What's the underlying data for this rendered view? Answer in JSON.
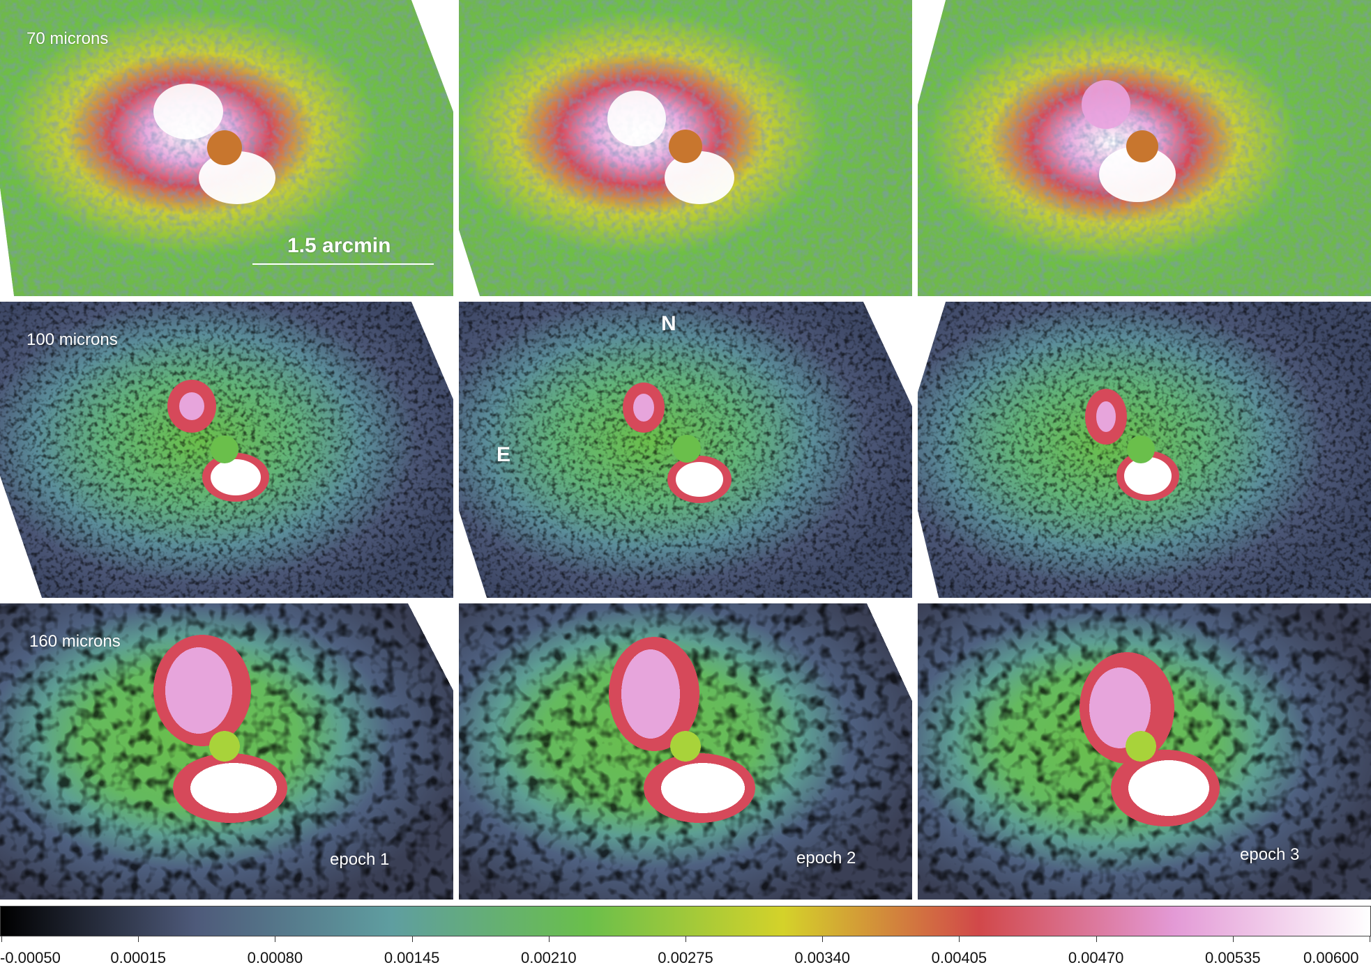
{
  "rows": [
    {
      "band_label": "70 microns"
    },
    {
      "band_label": "100 microns"
    },
    {
      "band_label": "160 microns"
    }
  ],
  "epochs": [
    "epoch 1",
    "epoch 2",
    "epoch 3"
  ],
  "scale_bar": {
    "label": "1.5 arcmin"
  },
  "compass": {
    "north": "N",
    "east": "E"
  },
  "colorbar": {
    "colors": [
      "#000000",
      "#4e5a7a",
      "#5f9ea0",
      "#6abf4b",
      "#d4d22a",
      "#d1484a",
      "#e39ad6",
      "#ffffff"
    ],
    "tick_labels": [
      "-0.00050",
      "0.00015",
      "0.00080",
      "0.00145",
      "0.00210",
      "0.00275",
      "0.00340",
      "0.00405",
      "0.00470",
      "0.00535",
      "0.00600"
    ]
  }
}
